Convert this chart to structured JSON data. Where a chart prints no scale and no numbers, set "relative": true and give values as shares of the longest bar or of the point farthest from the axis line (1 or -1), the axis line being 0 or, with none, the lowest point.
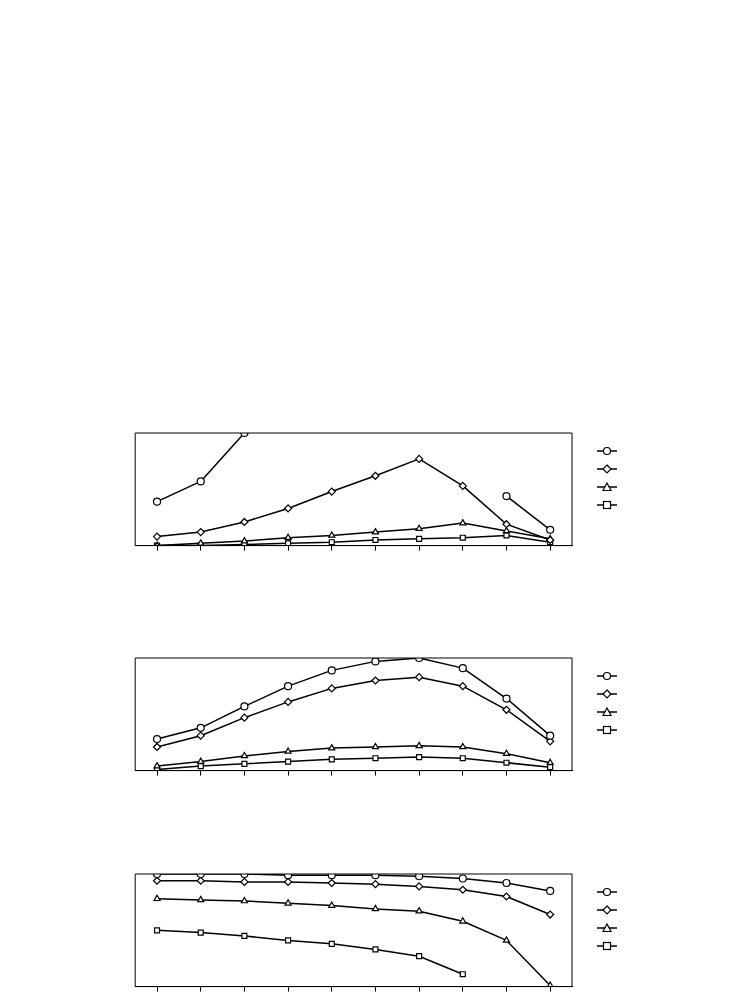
{
  "chart_data": [
    {
      "type": "line",
      "relative": true,
      "categories": [
        null,
        null,
        null,
        null,
        null,
        null,
        null,
        null,
        null,
        null
      ],
      "grid": false,
      "series": [
        {
          "color": "#000000",
          "marker": "circle",
          "values": [
            0.39,
            0.57,
            1,
            null,
            null,
            null,
            null,
            null,
            0.44,
            0.14
          ]
        },
        {
          "color": "#000000",
          "marker": "diamond",
          "values": [
            0.08,
            0.12,
            0.21,
            0.33,
            0.48,
            0.62,
            0.77,
            0.53,
            0.19,
            0.05
          ]
        },
        {
          "color": "#000000",
          "marker": "triangle",
          "values": [
            0,
            0.02,
            0.04,
            0.07,
            0.09,
            0.12,
            0.15,
            0.2,
            0.13,
            0.06
          ]
        },
        {
          "color": "#000000",
          "marker": "square",
          "values": [
            0,
            0,
            0.01,
            0.02,
            0.03,
            0.05,
            0.06,
            0.07,
            0.09,
            0.03
          ]
        }
      ]
    },
    {
      "type": "line",
      "relative": true,
      "categories": [
        null,
        null,
        null,
        null,
        null,
        null,
        null,
        null,
        null,
        null
      ],
      "grid": false,
      "series": [
        {
          "color": "#000000",
          "marker": "circle",
          "values": [
            0.28,
            0.38,
            0.57,
            0.75,
            0.89,
            0.97,
            1,
            0.91,
            0.64,
            0.31
          ]
        },
        {
          "color": "#000000",
          "marker": "diamond",
          "values": [
            0.21,
            0.31,
            0.47,
            0.61,
            0.73,
            0.8,
            0.83,
            0.75,
            0.54,
            0.26
          ]
        },
        {
          "color": "#000000",
          "marker": "triangle",
          "values": [
            0.04,
            0.08,
            0.13,
            0.17,
            0.2,
            0.21,
            0.22,
            0.21,
            0.15,
            0.07
          ]
        },
        {
          "color": "#000000",
          "marker": "square",
          "values": [
            0.01,
            0.04,
            0.06,
            0.08,
            0.1,
            0.11,
            0.12,
            0.11,
            0.07,
            0.03
          ]
        }
      ]
    },
    {
      "type": "line",
      "relative": true,
      "categories": [
        null,
        null,
        null,
        null,
        null,
        null,
        null,
        null,
        null,
        null
      ],
      "grid": false,
      "series": [
        {
          "color": "#000000",
          "marker": "circle",
          "values": [
            1,
            1,
            1,
            0.99,
            0.99,
            0.99,
            0.98,
            0.96,
            0.92,
            0.85
          ]
        },
        {
          "color": "#000000",
          "marker": "diamond",
          "values": [
            0.94,
            0.94,
            0.93,
            0.93,
            0.92,
            0.91,
            0.89,
            0.86,
            0.8,
            0.64
          ]
        },
        {
          "color": "#000000",
          "marker": "triangle",
          "values": [
            0.78,
            0.77,
            0.76,
            0.74,
            0.72,
            0.69,
            0.67,
            0.58,
            0.41,
            0.01
          ]
        },
        {
          "color": "#000000",
          "marker": "square",
          "values": [
            0.5,
            0.48,
            0.45,
            0.41,
            0.38,
            0.33,
            0.27,
            0.11,
            null,
            null
          ]
        }
      ]
    }
  ]
}
